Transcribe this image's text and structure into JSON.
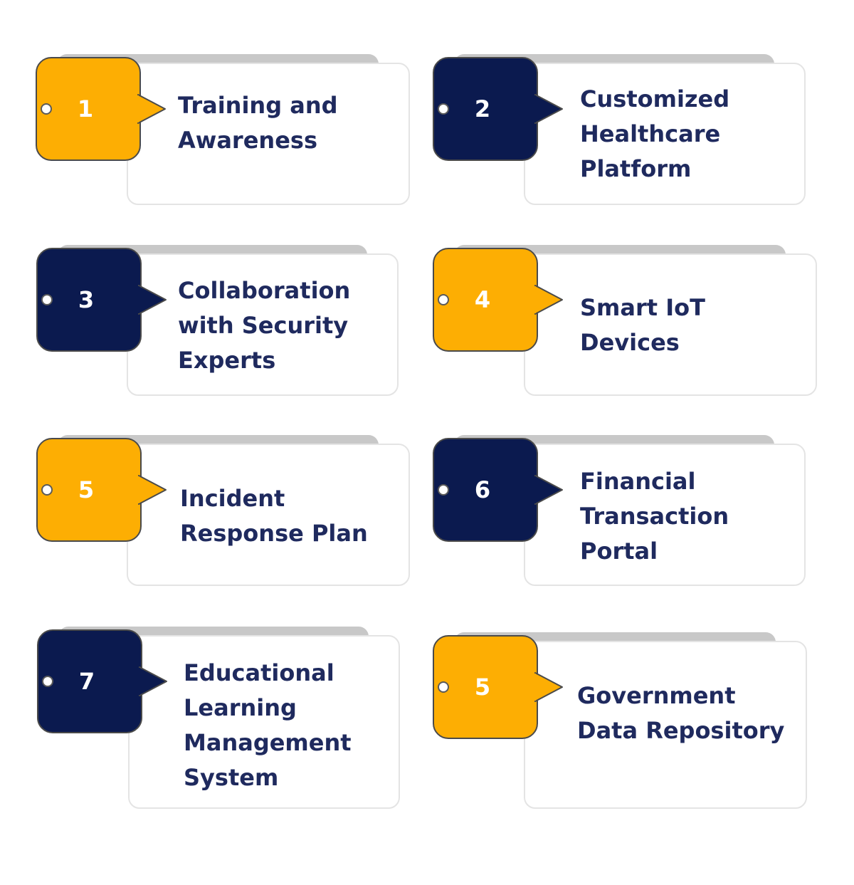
{
  "colors": {
    "yellow": "#fdae03",
    "navy": "#0b1a4f",
    "text": "#1f2a5e",
    "tab": "#c8c8c8",
    "border": "#e4e4e4"
  },
  "items": [
    {
      "number": "1",
      "lines": [
        "Training and",
        "Awareness"
      ],
      "color": "yellow"
    },
    {
      "number": "2",
      "lines": [
        "Customized",
        "Healthcare",
        "Platform"
      ],
      "color": "navy"
    },
    {
      "number": "3",
      "lines": [
        "Collaboration",
        "with Security",
        "Experts"
      ],
      "color": "navy"
    },
    {
      "number": "4",
      "lines": [
        "Smart IoT",
        "Devices"
      ],
      "color": "yellow"
    },
    {
      "number": "5",
      "lines": [
        "Incident",
        "Response Plan"
      ],
      "color": "yellow"
    },
    {
      "number": "6",
      "lines": [
        "Financial",
        "Transaction",
        "Portal"
      ],
      "color": "navy"
    },
    {
      "number": "7",
      "lines": [
        "Educational",
        "Learning",
        "Management",
        "System"
      ],
      "color": "navy"
    },
    {
      "number": "5",
      "lines": [
        "Government",
        "Data Repository"
      ],
      "color": "yellow"
    }
  ]
}
